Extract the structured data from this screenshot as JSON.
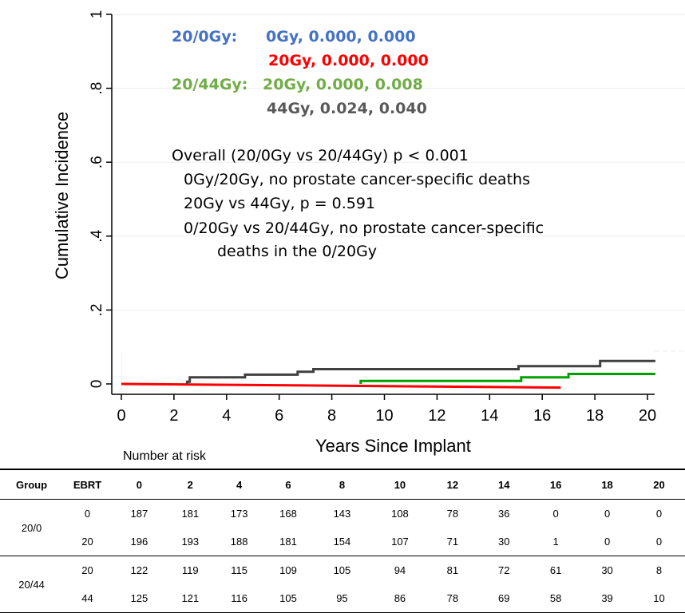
{
  "chart_data": {
    "type": "line",
    "ylabel": "Cumulative Incidence",
    "xlabel": "Years Since Implant",
    "xlim": [
      0,
      20.8
    ],
    "ylim": [
      0,
      1
    ],
    "x_ticks": [
      0,
      2,
      4,
      6,
      8,
      10,
      12,
      14,
      16,
      18,
      20
    ],
    "y_ticks": [
      {
        "value": 0,
        "label": "0"
      },
      {
        "value": 0.2,
        "label": ".2"
      },
      {
        "value": 0.4,
        "label": ".4"
      },
      {
        "value": 0.6,
        "label": ".6"
      },
      {
        "value": 0.8,
        "label": ".8"
      },
      {
        "value": 1,
        "label": "1"
      }
    ],
    "grid": true,
    "series": [
      {
        "color": "#ff0000",
        "step": false,
        "points": [
          [
            0,
            0.0
          ],
          [
            16.7,
            -0.01
          ]
        ]
      },
      {
        "color": "#00a000",
        "step": true,
        "points": [
          [
            9.1,
            0.0
          ],
          [
            9.1,
            0.008
          ],
          [
            15.2,
            0.008
          ],
          [
            15.2,
            0.018
          ],
          [
            17.0,
            0.018
          ],
          [
            17.0,
            0.027
          ],
          [
            20.3,
            0.027
          ]
        ]
      },
      {
        "color": "#404040",
        "step": true,
        "points": [
          [
            2.5,
            0.0
          ],
          [
            2.5,
            0.006
          ],
          [
            2.6,
            0.006
          ],
          [
            2.6,
            0.018
          ],
          [
            4.7,
            0.018
          ],
          [
            4.7,
            0.025
          ],
          [
            6.7,
            0.025
          ],
          [
            6.7,
            0.033
          ],
          [
            7.3,
            0.033
          ],
          [
            7.3,
            0.04
          ],
          [
            15.1,
            0.04
          ],
          [
            15.1,
            0.048
          ],
          [
            18.2,
            0.048
          ],
          [
            18.2,
            0.062
          ],
          [
            20.3,
            0.062
          ]
        ]
      }
    ],
    "annotations": [
      {
        "text": "20/0Gy:",
        "color": "#4472c4"
      },
      {
        "text": "0Gy, 0.000, 0.000",
        "color": "#4472c4"
      },
      {
        "text": "20Gy, 0.000, 0.000",
        "color": "#ff0000"
      },
      {
        "text": "20/44Gy:",
        "color": "#70ad47"
      },
      {
        "text": "20Gy, 0.000, 0.008",
        "color": "#70ad47"
      },
      {
        "text": "44Gy, 0.024, 0.040",
        "color": "#595959"
      },
      {
        "text": "Overall (20/0Gy vs 20/44Gy) p < 0.001",
        "color": "#000000"
      },
      {
        "text": "0Gy/20Gy, no prostate cancer-specific deaths",
        "color": "#000000"
      },
      {
        "text": "20Gy vs 44Gy, p = 0.591",
        "color": "#000000"
      },
      {
        "text": "0/20Gy vs 20/44Gy, no prostate cancer-specific",
        "color": "#000000"
      },
      {
        "text": "deaths in the 0/20Gy",
        "color": "#000000"
      }
    ]
  },
  "risk_table": {
    "title": "Number at risk",
    "headers": [
      "Group",
      "EBRT",
      "0",
      "2",
      "4",
      "6",
      "8",
      "10",
      "12",
      "14",
      "16",
      "18",
      "20"
    ],
    "groups": [
      {
        "name": "20/0",
        "rows": [
          {
            "ebrt": "0",
            "values": [
              "187",
              "181",
              "173",
              "168",
              "143",
              "108",
              "78",
              "36",
              "0",
              "0",
              "0"
            ]
          },
          {
            "ebrt": "20",
            "values": [
              "196",
              "193",
              "188",
              "181",
              "154",
              "107",
              "71",
              "30",
              "1",
              "0",
              "0"
            ]
          }
        ]
      },
      {
        "name": "20/44",
        "rows": [
          {
            "ebrt": "20",
            "values": [
              "122",
              "119",
              "115",
              "109",
              "105",
              "94",
              "81",
              "72",
              "61",
              "30",
              "8"
            ]
          },
          {
            "ebrt": "44",
            "values": [
              "125",
              "121",
              "116",
              "105",
              "95",
              "86",
              "78",
              "69",
              "58",
              "39",
              "10"
            ]
          }
        ]
      }
    ]
  }
}
